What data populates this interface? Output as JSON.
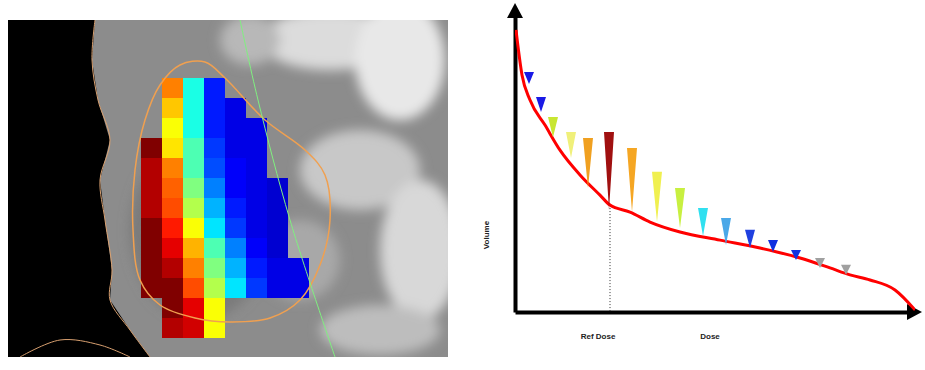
{
  "chart_data": [
    {
      "type": "heatmap",
      "zlim": [
        0,
        100
      ],
      "cells": [
        [
          null,
          75,
          40,
          15,
          null,
          null,
          null,
          null
        ],
        [
          null,
          68,
          40,
          15,
          10,
          null,
          null,
          null
        ],
        [
          null,
          62,
          40,
          15,
          10,
          10,
          null,
          null
        ],
        [
          100,
          65,
          45,
          18,
          10,
          10,
          null,
          null
        ],
        [
          95,
          75,
          45,
          20,
          12,
          10,
          null,
          null
        ],
        [
          95,
          78,
          50,
          25,
          12,
          10,
          8,
          null
        ],
        [
          95,
          80,
          55,
          30,
          15,
          10,
          8,
          null
        ],
        [
          100,
          85,
          62,
          35,
          18,
          10,
          8,
          null
        ],
        [
          100,
          90,
          70,
          45,
          25,
          12,
          8,
          null
        ],
        [
          100,
          95,
          75,
          50,
          30,
          15,
          10,
          10
        ],
        [
          100,
          100,
          80,
          55,
          35,
          18,
          10,
          10
        ],
        [
          null,
          100,
          90,
          62,
          null,
          null,
          null,
          null
        ],
        [
          null,
          95,
          92,
          62,
          null,
          null,
          null,
          null
        ]
      ]
    },
    {
      "type": "line",
      "xlabel": "Dose",
      "ylabel": "Volume",
      "xlim": [
        0,
        100
      ],
      "ylim": [
        0,
        100
      ],
      "xticks": [],
      "yticks": [],
      "tick_labels": false,
      "color": "#ff0000",
      "x": [
        0.25,
        1.75,
        3.75,
        7.5,
        11.25,
        16.25,
        21.25,
        23.75,
        28.75,
        33.75,
        41.25,
        51.25,
        61.25,
        71.25,
        78.75,
        83.75,
        88.75,
        95,
        100
      ],
      "values": [
        93.4,
        78.5,
        70.2,
        61.9,
        53.6,
        45.4,
        38.7,
        35.4,
        33.1,
        29.8,
        26.5,
        23.8,
        21.2,
        17.9,
        14.6,
        12.3,
        10.6,
        7.3,
        0.7
      ],
      "ref_dose": {
        "x": 23.75,
        "y": 35.4,
        "label": "Ref Dose"
      },
      "arrows": {
        "x": [
          3.5,
          6.5,
          9.5,
          14,
          18.25,
          23.5,
          29.25,
          35.5,
          41.25,
          47,
          52.75,
          58.75,
          64.5,
          70.25,
          76.25,
          82.75
        ],
        "from": [
          79.5,
          71.2,
          64.6,
          59.6,
          57.6,
          59.6,
          54.3,
          46.4,
          41.1,
          34.4,
          31.1,
          27.2,
          23.8,
          20.5,
          16.6,
          14.6
        ],
        "to": [
          75.5,
          66.2,
          57.9,
          51.0,
          41.1,
          33.8,
          33.1,
          29.8,
          27.8,
          25.2,
          22.2,
          21.2,
          19.9,
          17.2,
          14.6,
          12.3
        ],
        "colors": [
          "#1a1ae6",
          "#1a1ae6",
          "#c8e632",
          "#f0f07a",
          "#f0a020",
          "#a01010",
          "#f5a623",
          "#f0f050",
          "#c8f040",
          "#30e0f0",
          "#4aa8e8",
          "#2040e0",
          "#1030e0",
          "#1030e0",
          "#a0a0a0",
          "#a0a0a0"
        ]
      }
    }
  ]
}
